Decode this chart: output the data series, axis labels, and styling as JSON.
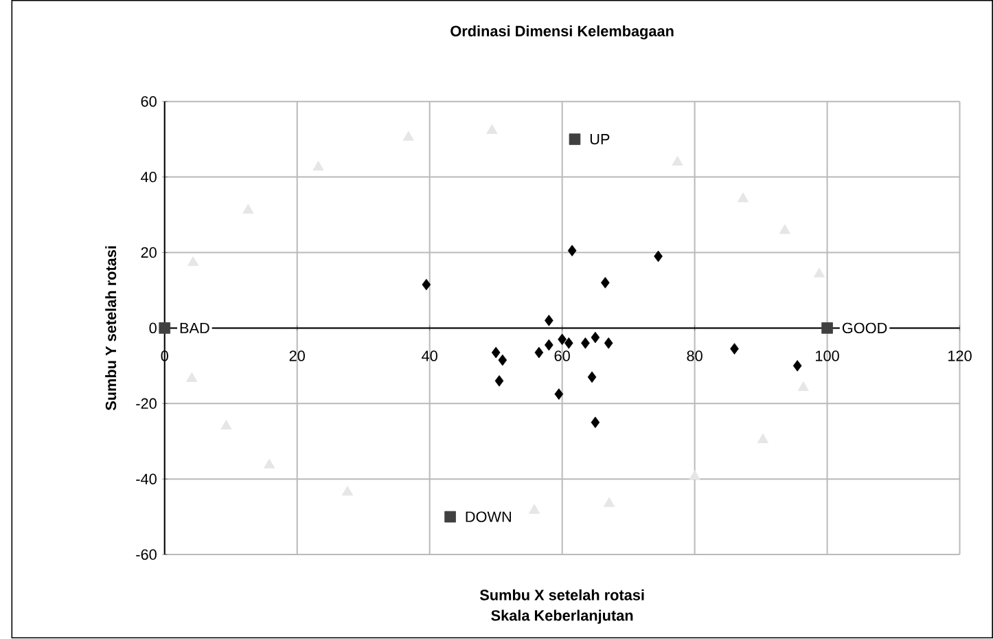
{
  "chart_data": {
    "type": "scatter",
    "title": "Ordinasi Dimensi Kelembagaan",
    "xlabel": "Sumbu X setelah rotasi",
    "ylabel": "Sumbu Y setelah rotasi",
    "xlim": [
      0,
      120
    ],
    "ylim": [
      -60,
      60
    ],
    "xticks": [
      0,
      20,
      40,
      60,
      80,
      100,
      120
    ],
    "yticks": [
      -60,
      -40,
      -20,
      0,
      20,
      40,
      60
    ],
    "grid": true,
    "series": [
      {
        "color": "#e6e6e6",
        "marker": "triangle",
        "x": [
          4.3,
          12.6,
          23.2,
          36.8,
          49.4,
          77.4,
          87.3,
          93.6,
          98.8,
          4.1,
          9.3,
          15.8,
          27.6,
          55.8,
          67.1,
          80,
          90.3,
          96.4
        ],
        "values": [
          17.3,
          31.2,
          42.6,
          50.5,
          52.3,
          43.9,
          34.2,
          25.8,
          14.3,
          -13.4,
          -26,
          -36.3,
          -43.5,
          -48.3,
          -46.5,
          -39.3,
          -29.6,
          -15.8
        ]
      },
      {
        "color": "#404040",
        "marker": "square",
        "x": [
          0,
          100,
          61.9,
          43.1
        ],
        "values": [
          0,
          0,
          50,
          -50
        ]
      },
      {
        "color": "#000000",
        "marker": "diamond",
        "x": [
          39.5,
          61.5,
          74.5,
          66.5,
          58,
          50,
          51,
          50.5,
          56.5,
          58,
          60,
          61,
          63.5,
          65,
          67,
          64.5,
          59.5,
          65,
          86,
          95.5
        ],
        "values": [
          11.5,
          20.5,
          19,
          12,
          2,
          -6.5,
          -8.5,
          -14,
          -6.5,
          -4.5,
          -3,
          -4,
          -4,
          -2.5,
          -4,
          -13,
          -17.5,
          -25,
          -5.5,
          -10
        ]
      }
    ],
    "annotations": [
      {
        "text": "BAD",
        "x": 0,
        "y": 0
      },
      {
        "text": "GOOD",
        "x": 100,
        "y": 0
      },
      {
        "text": "UP",
        "x": 61.9,
        "y": 50
      },
      {
        "text": "DOWN",
        "x": 43.1,
        "y": -50
      },
      "Skala Keberlanjutan"
    ]
  }
}
